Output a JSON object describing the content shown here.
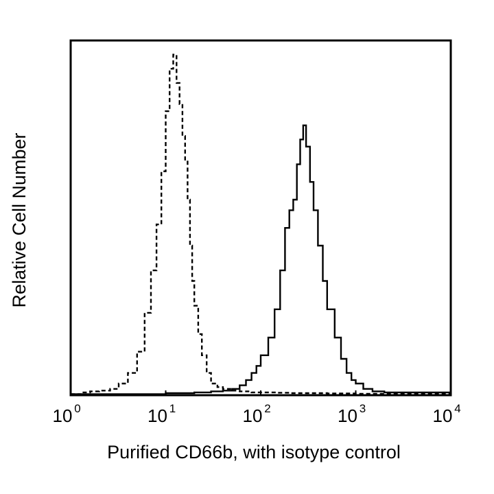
{
  "chart_data": {
    "type": "line",
    "title": "",
    "xlabel": "Purified CD66b, with isotype control",
    "ylabel": "Relative Cell Number",
    "x_scale": "log",
    "xlim": [
      1,
      10000
    ],
    "ylim": [
      0,
      100
    ],
    "grid": false,
    "legend": "none",
    "x_ticks": [
      {
        "value": 1,
        "base": "10",
        "exp": "0"
      },
      {
        "value": 10,
        "base": "10",
        "exp": "1"
      },
      {
        "value": 100,
        "base": "10",
        "exp": "2"
      },
      {
        "value": 1000,
        "base": "10",
        "exp": "3"
      },
      {
        "value": 10000,
        "base": "10",
        "exp": "4"
      }
    ],
    "series": [
      {
        "style": "dashed",
        "color": "#000000",
        "x": [
          1,
          1.3,
          1.6,
          2,
          2.6,
          3.2,
          4,
          5,
          6,
          7,
          8,
          9,
          10,
          11,
          12,
          13,
          14,
          15,
          16,
          17,
          18,
          19,
          20,
          22,
          24,
          27,
          30,
          35,
          40,
          50,
          60,
          80,
          100,
          150,
          200,
          300,
          500,
          1000,
          10000
        ],
        "y": [
          0,
          0.5,
          0.8,
          1.0,
          1.5,
          3,
          6,
          12,
          23,
          35,
          48,
          63,
          80,
          92,
          96,
          88,
          82,
          73,
          66,
          55,
          42,
          32,
          25,
          17,
          11,
          6,
          3,
          2,
          1.5,
          1,
          0.8,
          0.5,
          0.5,
          0.4,
          0.3,
          0.3,
          0.2,
          0.1,
          0
        ]
      },
      {
        "style": "solid",
        "color": "#000000",
        "x": [
          1,
          10,
          20,
          30,
          40,
          50,
          60,
          70,
          80,
          90,
          100,
          120,
          140,
          160,
          180,
          200,
          220,
          240,
          260,
          280,
          300,
          330,
          360,
          400,
          450,
          500,
          600,
          700,
          800,
          900,
          1000,
          1200,
          1500,
          2000,
          10000
        ],
        "y": [
          0,
          0.3,
          0.5,
          0.8,
          1,
          1.5,
          2.5,
          4,
          6,
          8,
          11,
          16,
          24,
          35,
          47,
          52,
          55,
          65,
          72,
          76,
          70,
          60,
          52,
          42,
          32,
          24,
          16,
          10,
          6,
          4,
          3,
          1.5,
          0.8,
          0.5,
          0
        ]
      }
    ]
  }
}
